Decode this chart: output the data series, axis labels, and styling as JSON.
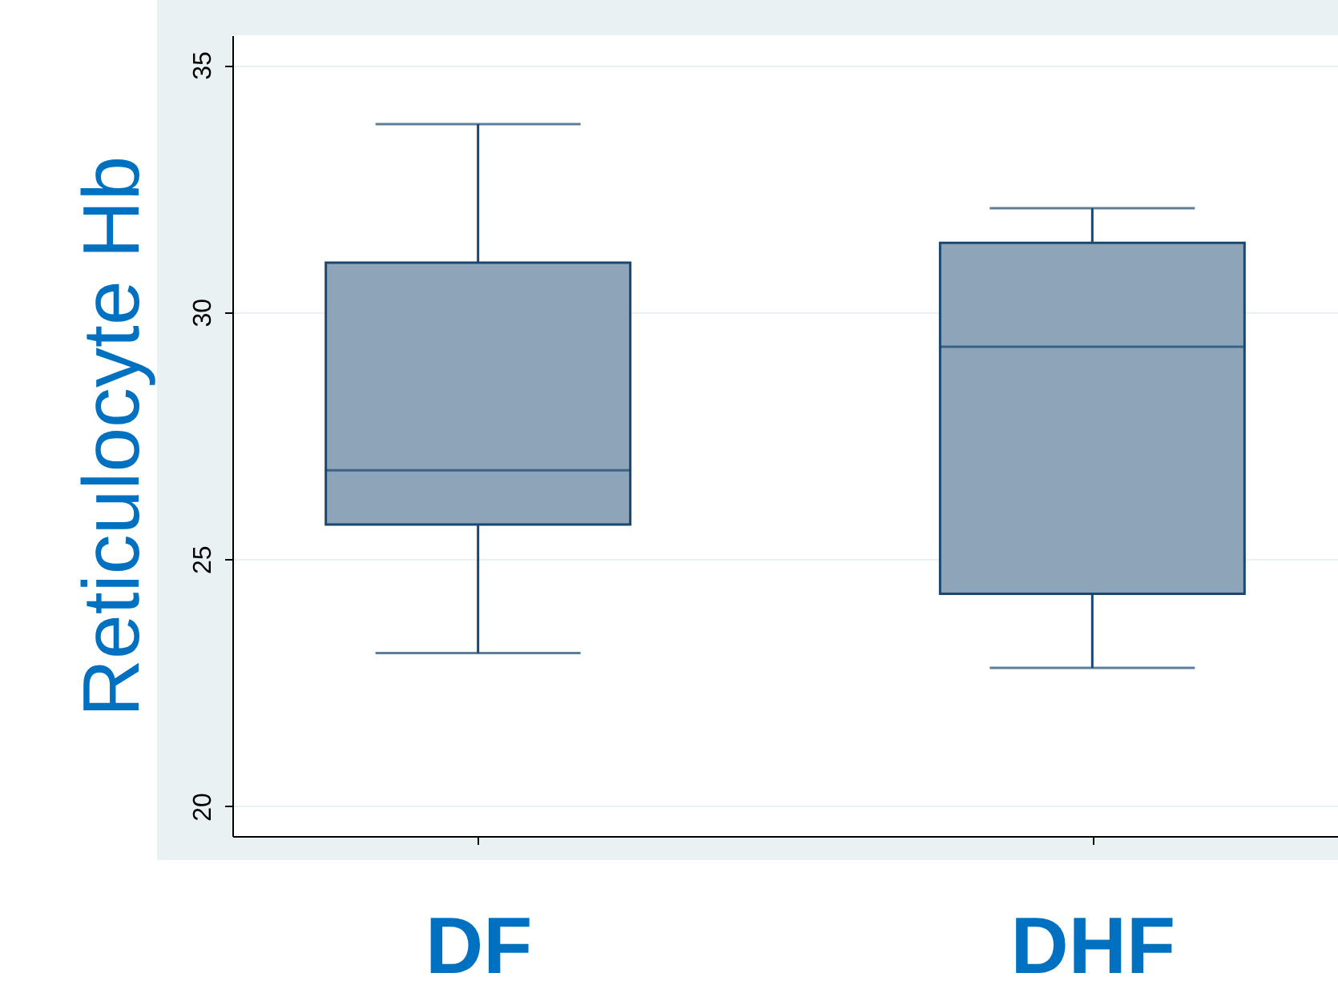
{
  "chart_data": {
    "type": "box",
    "ylabel": "Reticulocyte Hb",
    "categories": [
      "DF",
      "DHF"
    ],
    "color": "#8ea4b9",
    "boxes": [
      {
        "low": 23.1,
        "q1": 25.7,
        "median": 26.8,
        "q3": 31.0,
        "high": 33.8
      },
      {
        "low": 22.8,
        "q1": 24.3,
        "median": 29.3,
        "q3": 31.4,
        "high": 32.1
      }
    ],
    "ylim": [
      19.4,
      35.6
    ],
    "yticks": [
      20,
      25,
      30,
      35
    ],
    "grid": "y"
  }
}
